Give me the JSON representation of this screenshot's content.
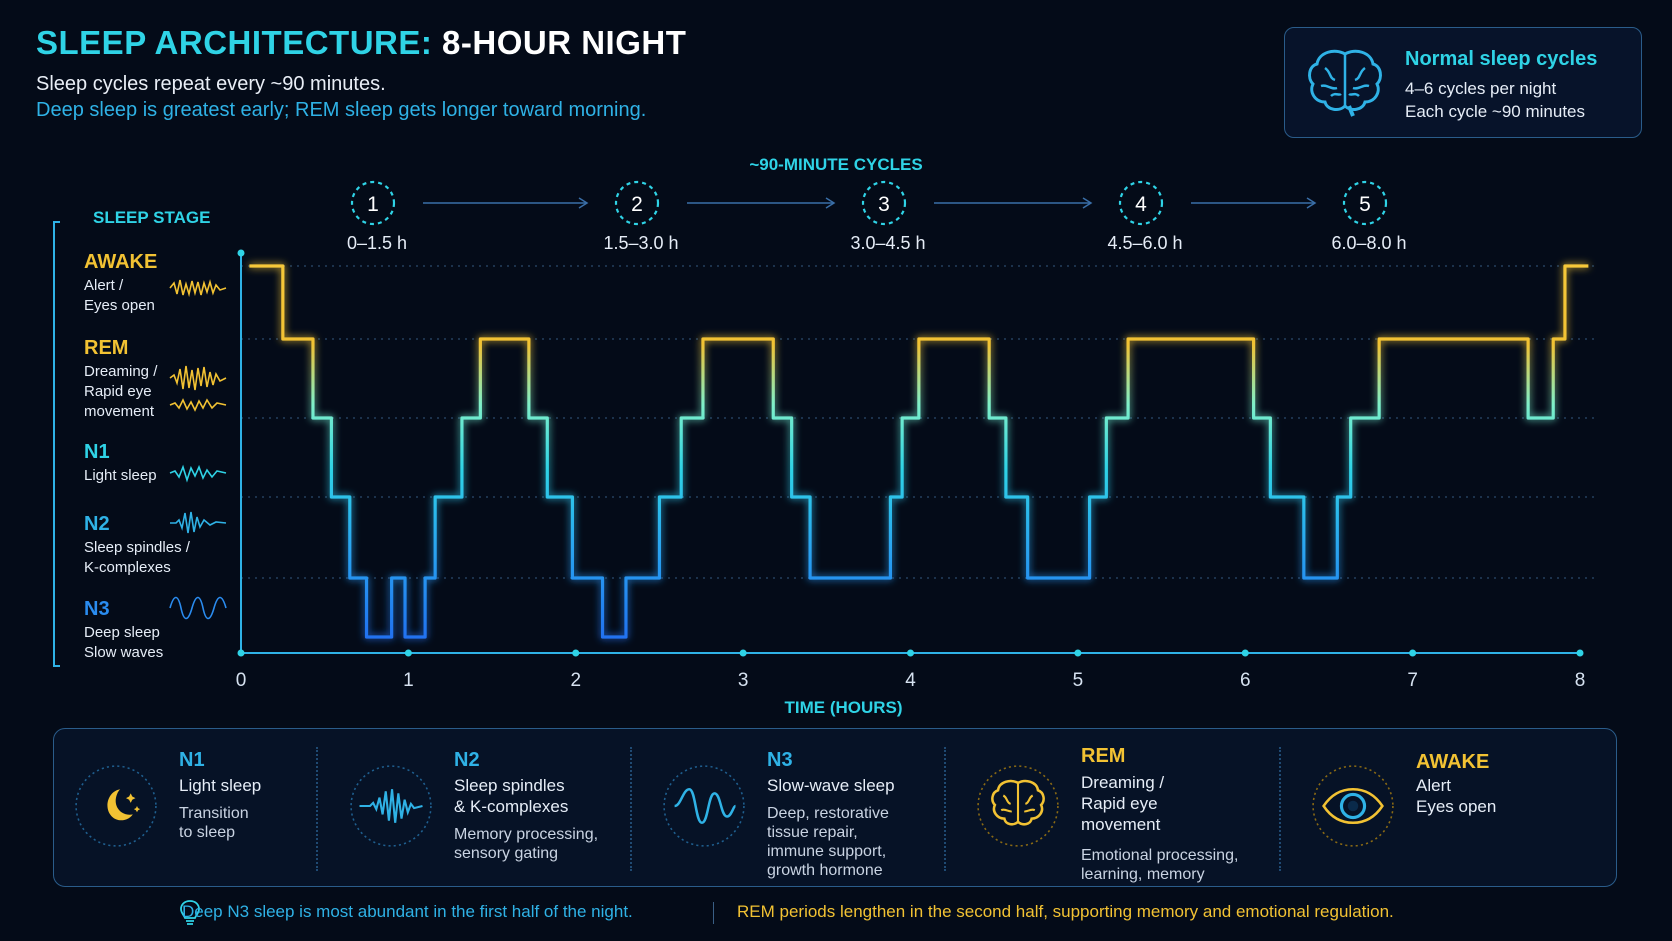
{
  "header": {
    "title_accent": "SLEEP ARCHITECTURE:",
    "title_rest": "8-HOUR NIGHT",
    "subtitle1": "Sleep cycles repeat every ~90 minutes.",
    "subtitle2": "Deep sleep is greatest early; REM sleep gets longer toward morning."
  },
  "info_card": {
    "title": "Normal sleep cycles",
    "line1": "4–6 cycles per night",
    "line2": "Each cycle ~90 minutes",
    "icon": "brain-icon"
  },
  "cycles": {
    "heading": "~90-MINUTE CYCLES",
    "items": [
      {
        "num": "1",
        "range": "0–1.5 h"
      },
      {
        "num": "2",
        "range": "1.5–3.0 h"
      },
      {
        "num": "3",
        "range": "3.0–4.5 h"
      },
      {
        "num": "4",
        "range": "4.5–6.0 h"
      },
      {
        "num": "5",
        "range": "6.0–8.0 h"
      }
    ]
  },
  "chart_data": {
    "type": "line",
    "title": "SLEEP ARCHITECTURE: 8-HOUR NIGHT",
    "xlabel": "TIME (HOURS)",
    "ylabel": "SLEEP STAGE",
    "xlim": [
      0,
      8
    ],
    "x_ticks": [
      "0",
      "1",
      "2",
      "3",
      "4",
      "5",
      "6",
      "7",
      "8"
    ],
    "stages": [
      {
        "name": "AWAKE",
        "desc": [
          "Alert /",
          "Eyes open"
        ],
        "color": "#f2c233"
      },
      {
        "name": "REM",
        "desc": [
          "Dreaming /",
          "Rapid eye",
          "movement"
        ],
        "color": "#f2c233"
      },
      {
        "name": "N1",
        "desc": [
          "Light sleep"
        ],
        "color": "#2fd3e6"
      },
      {
        "name": "N2",
        "desc": [
          "Sleep spindles /",
          "K-complexes"
        ],
        "color": "#2fb2e6"
      },
      {
        "name": "N3",
        "desc": [
          "Deep sleep",
          "Slow waves"
        ],
        "color": "#2a8cf0"
      }
    ],
    "hypnogram": [
      [
        0.05,
        "AWAKE"
      ],
      [
        0.25,
        "REM"
      ],
      [
        0.43,
        "N1"
      ],
      [
        0.54,
        "N2"
      ],
      [
        0.65,
        "N3"
      ],
      [
        0.75,
        "N3-deep"
      ],
      [
        0.9,
        "N3"
      ],
      [
        0.98,
        "N3-deep"
      ],
      [
        1.1,
        "N3"
      ],
      [
        1.16,
        "N2"
      ],
      [
        1.32,
        "N1"
      ],
      [
        1.43,
        "REM"
      ],
      [
        1.72,
        "N1"
      ],
      [
        1.83,
        "N2"
      ],
      [
        1.98,
        "N3"
      ],
      [
        2.16,
        "N3-deep"
      ],
      [
        2.3,
        "N3"
      ],
      [
        2.5,
        "N2"
      ],
      [
        2.63,
        "N1"
      ],
      [
        2.76,
        "REM"
      ],
      [
        3.18,
        "N1"
      ],
      [
        3.29,
        "N2"
      ],
      [
        3.4,
        "N3"
      ],
      [
        3.88,
        "N2"
      ],
      [
        3.95,
        "N1"
      ],
      [
        4.05,
        "REM"
      ],
      [
        4.47,
        "N1"
      ],
      [
        4.57,
        "N2"
      ],
      [
        4.7,
        "N3"
      ],
      [
        5.07,
        "N2"
      ],
      [
        5.17,
        "N1"
      ],
      [
        5.3,
        "REM"
      ],
      [
        6.05,
        "N1"
      ],
      [
        6.15,
        "N2"
      ],
      [
        6.35,
        "N3"
      ],
      [
        6.55,
        "N2"
      ],
      [
        6.63,
        "N1"
      ],
      [
        6.8,
        "REM"
      ],
      [
        7.69,
        "N1"
      ],
      [
        7.84,
        "REM"
      ],
      [
        7.91,
        "AWAKE"
      ],
      [
        8.05,
        "AWAKE"
      ]
    ]
  },
  "legend": [
    {
      "title": "N1",
      "sub": [
        "Light sleep"
      ],
      "desc": [
        "Transition",
        "to sleep"
      ],
      "icon": "moon-icon",
      "color": "#2fb2e6"
    },
    {
      "title": "N2",
      "sub": [
        "Sleep spindles",
        "& K-complexes"
      ],
      "desc": [
        "Memory processing,",
        "sensory gating"
      ],
      "icon": "spindle-wave-icon",
      "color": "#2fb2e6"
    },
    {
      "title": "N3",
      "sub": [
        "Slow-wave sleep"
      ],
      "desc": [
        "Deep, restorative",
        "tissue repair,",
        "immune support,",
        "growth hormone"
      ],
      "icon": "slow-wave-icon",
      "color": "#2fb2e6"
    },
    {
      "title": "REM",
      "sub": [
        "Dreaming /",
        "Rapid eye",
        "movement"
      ],
      "desc": [
        "Emotional processing,",
        "learning, memory"
      ],
      "icon": "brain-icon",
      "color": "#f2c233"
    },
    {
      "title": "AWAKE",
      "sub": [
        "Alert",
        "Eyes open"
      ],
      "desc": [],
      "icon": "eye-icon",
      "color": "#f2c233"
    }
  ],
  "footer": {
    "left": "Deep N3 sleep is most abundant in the first half of the night.",
    "right": "REM periods lengthen in the second half, supporting memory and emotional regulation.",
    "icon": "lightbulb-icon"
  },
  "colors": {
    "accent": "#2fd3e6",
    "rem": "#f2c233",
    "deep": "#2a8cf0",
    "background": "#040b18"
  }
}
